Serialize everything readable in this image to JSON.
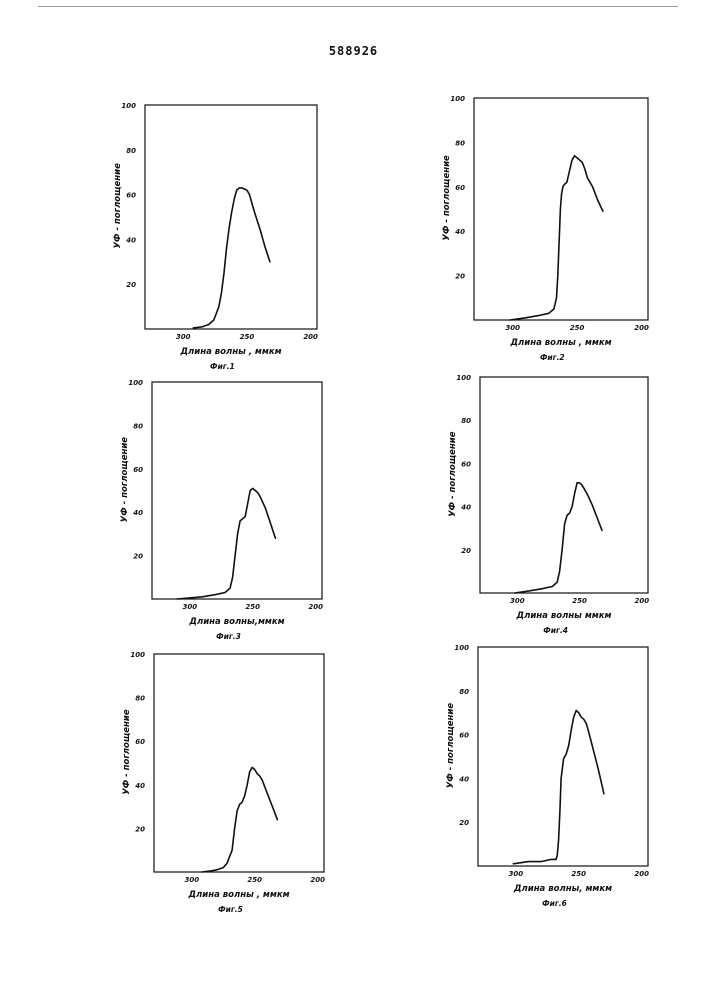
{
  "page_number": "588926",
  "chart_data": [
    {
      "type": "line",
      "caption": "Фиг.1",
      "xlabel": "Длина волны , ммкм",
      "ylabel": "УФ - поглощение",
      "x_reversed": true,
      "xlim": [
        330,
        195
      ],
      "ylim": [
        0,
        100
      ],
      "xticks": [
        300,
        250,
        200
      ],
      "yticks": [
        20,
        40,
        60,
        80,
        100
      ],
      "x": [
        292,
        285,
        280,
        276,
        272,
        270,
        268,
        266,
        264,
        262,
        260,
        258,
        256,
        254,
        252,
        250,
        248,
        246,
        244,
        240,
        236,
        232
      ],
      "y": [
        0.5,
        1,
        2,
        4,
        10,
        16,
        25,
        36,
        45,
        52,
        58,
        62,
        63,
        63,
        62.5,
        62,
        60,
        56,
        52,
        45,
        37,
        30
      ]
    },
    {
      "type": "line",
      "caption": "Фиг.2",
      "xlabel": "Длина волны , ммкм",
      "ylabel": "УФ - поглощение",
      "x_reversed": true,
      "xlim": [
        330,
        195
      ],
      "ylim": [
        0,
        100
      ],
      "xticks": [
        300,
        250,
        200
      ],
      "yticks": [
        20,
        40,
        60,
        80,
        100
      ],
      "x": [
        302,
        290,
        280,
        272,
        268,
        266,
        265,
        264,
        263,
        262,
        261,
        260,
        258,
        256,
        254,
        252,
        250,
        248,
        246,
        244,
        242,
        238,
        234,
        230
      ],
      "y": [
        0,
        1,
        2,
        3,
        5,
        10,
        20,
        35,
        50,
        57,
        60,
        61,
        62,
        67,
        72,
        74,
        73,
        72,
        71,
        68,
        64,
        60,
        54,
        49
      ]
    },
    {
      "type": "line",
      "caption": "Фиг.3",
      "xlabel": "Длина волны,ммкм",
      "ylabel": "УФ - поглощение",
      "x_reversed": true,
      "xlim": [
        330,
        195
      ],
      "ylim": [
        0,
        100
      ],
      "xticks": [
        300,
        250,
        200
      ],
      "yticks": [
        20,
        40,
        60,
        80,
        100
      ],
      "x": [
        310,
        300,
        290,
        280,
        272,
        268,
        266,
        264,
        262,
        260,
        258,
        256,
        254,
        252,
        250,
        248,
        246,
        244,
        240,
        236,
        232
      ],
      "y": [
        0,
        0.5,
        1,
        2,
        3,
        5,
        10,
        20,
        30,
        36,
        37,
        38,
        44,
        50,
        51,
        50,
        49,
        47,
        42,
        35,
        28
      ]
    },
    {
      "type": "line",
      "caption": "Фиг.4",
      "xlabel": "Длина волны ммкм",
      "ylabel": "УФ - поглощение",
      "x_reversed": true,
      "xlim": [
        330,
        195
      ],
      "ylim": [
        0,
        100
      ],
      "xticks": [
        300,
        250,
        200
      ],
      "yticks": [
        20,
        40,
        60,
        80,
        100
      ],
      "x": [
        302,
        290,
        280,
        272,
        268,
        266,
        264,
        262,
        260,
        258,
        256,
        254,
        252,
        250,
        248,
        246,
        244,
        240,
        236,
        232
      ],
      "y": [
        0,
        1,
        2,
        3,
        5,
        10,
        20,
        32,
        36,
        37,
        40,
        46,
        51,
        51,
        50,
        48,
        46,
        41,
        35,
        29
      ]
    },
    {
      "type": "line",
      "caption": "Фиг.5",
      "xlabel": "Длина волны , ммкм",
      "ylabel": "УФ - поглощение",
      "x_reversed": true,
      "xlim": [
        330,
        195
      ],
      "ylim": [
        0,
        100
      ],
      "xticks": [
        300,
        250,
        200
      ],
      "yticks": [
        20,
        40,
        60,
        80,
        100
      ],
      "x": [
        292,
        285,
        280,
        275,
        272,
        268,
        266,
        264,
        262,
        260,
        258,
        256,
        254,
        252,
        250,
        248,
        246,
        244,
        240,
        236,
        232
      ],
      "y": [
        0,
        0.5,
        1,
        2,
        4,
        10,
        20,
        28,
        31,
        32,
        35,
        40,
        46,
        48,
        47,
        45,
        44,
        42,
        36,
        30,
        24
      ]
    },
    {
      "type": "line",
      "caption": "Фиг.6",
      "xlabel": "Длина волны, ммкм",
      "ylabel": "УФ - поглощение",
      "x_reversed": true,
      "xlim": [
        330,
        195
      ],
      "ylim": [
        0,
        100
      ],
      "xticks": [
        300,
        250,
        200
      ],
      "yticks": [
        20,
        40,
        60,
        80,
        100
      ],
      "x": [
        302,
        290,
        280,
        272,
        268,
        267,
        266,
        265,
        264,
        262,
        260,
        258,
        256,
        254,
        252,
        250,
        248,
        246,
        244,
        242,
        238,
        234,
        230
      ],
      "y": [
        1,
        2,
        2,
        3,
        3,
        5,
        12,
        25,
        40,
        49,
        51,
        55,
        62,
        68,
        71,
        70,
        68,
        67,
        65,
        61,
        52,
        43,
        33
      ]
    }
  ]
}
